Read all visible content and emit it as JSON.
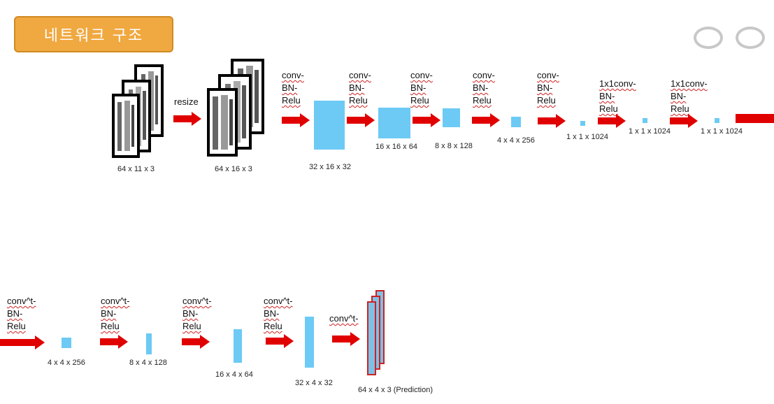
{
  "slide": {
    "title": "네트워크 구조"
  },
  "row1": {
    "input_dim": "64 x 11 x 3",
    "resize_label": "resize",
    "resized_dim": "64 x 16 x 3",
    "stages": [
      {
        "op": "conv-\nBN-\nRelu",
        "dim": "32 x 16 x 32"
      },
      {
        "op": "conv-\nBN-\nRelu",
        "dim": "16 x 16 x 64"
      },
      {
        "op": "conv-\nBN-\nRelu",
        "dim": "8 x 8 x 128"
      },
      {
        "op": "conv-\nBN-\nRelu",
        "dim": "4 x 4 x 256"
      },
      {
        "op": "conv-\nBN-\nRelu",
        "dim": "1 x 1 x 1024"
      },
      {
        "op": "1x1conv-\nBN-\nRelu",
        "dim": "1 x 1 x 1024"
      },
      {
        "op": "1x1conv-\nBN-\nRelu",
        "dim": "1 x 1 x 1024"
      }
    ]
  },
  "row2": {
    "stages": [
      {
        "op": "conv^t-\nBN-\nRelu",
        "dim": "4 x 4 x 256"
      },
      {
        "op": "conv^t-\nBN-\nRelu",
        "dim": "8 x 4 x 128"
      },
      {
        "op": "conv^t-\nBN-\nRelu",
        "dim": "16 x 4 x 64"
      },
      {
        "op": "conv^t-\nBN-\nRelu",
        "dim": "32 x 4 x 32"
      },
      {
        "op": "conv^t-",
        "dim": "64 x 4 x 3 (Prediction)"
      }
    ]
  },
  "colors": {
    "block": "#6ccaf5",
    "arrow": "#e00000",
    "badge": "#f0a840"
  }
}
